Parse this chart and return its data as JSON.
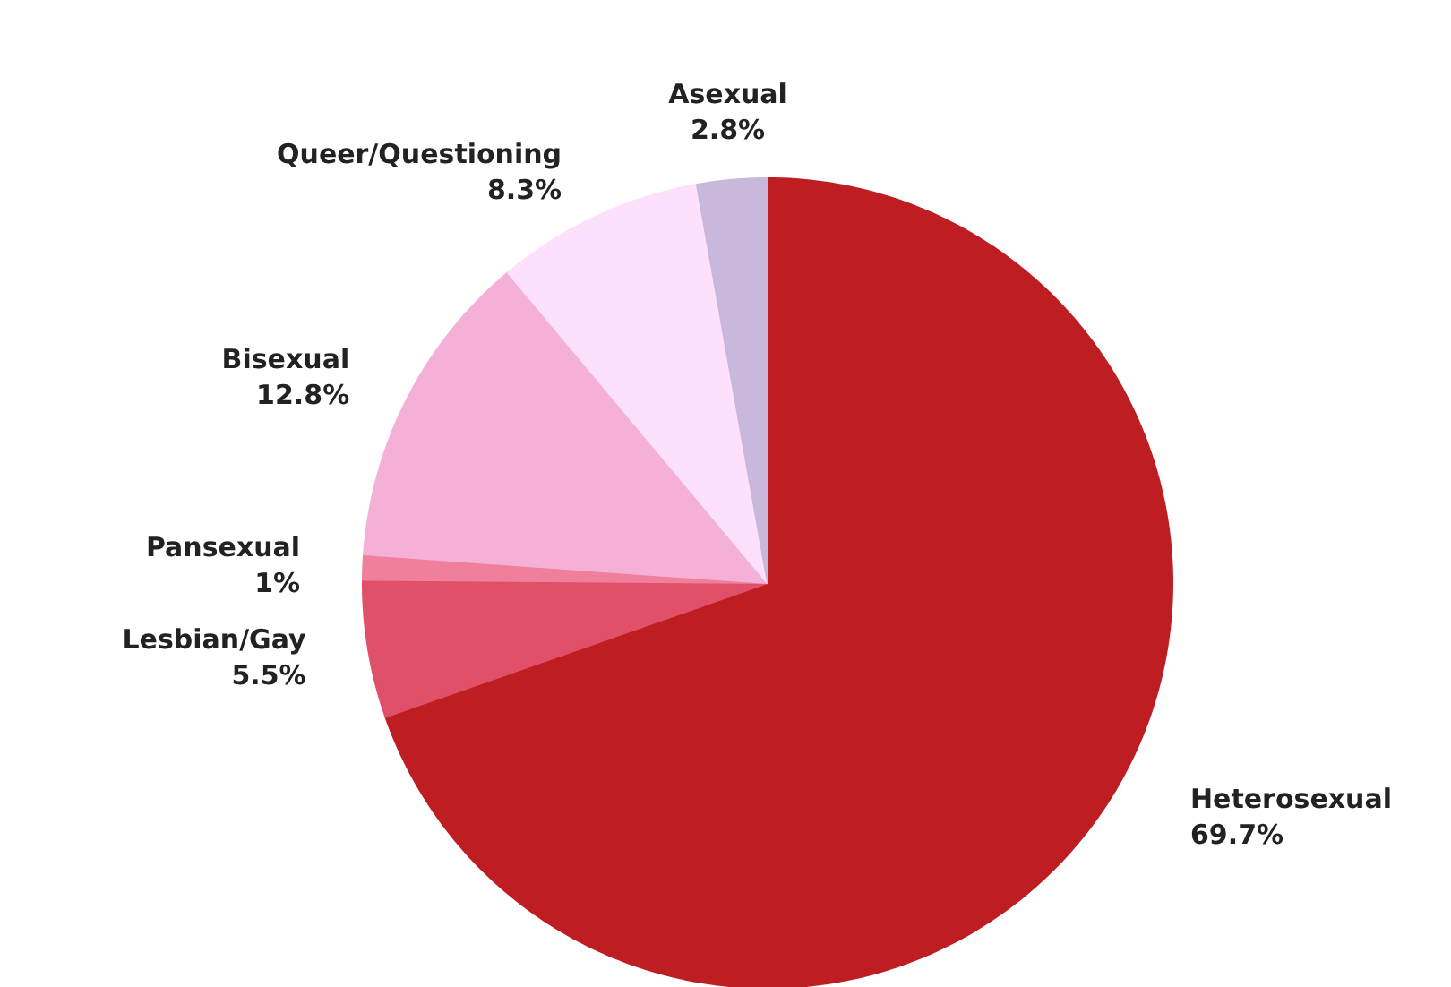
{
  "chart_data": {
    "type": "pie",
    "categories": [
      "Heterosexual",
      "Lesbian/Gay",
      "Pansexual",
      "Bisexual",
      "Queer/Questioning",
      "Asexual"
    ],
    "values": [
      69.7,
      5.5,
      1,
      12.8,
      8.3,
      2.8
    ],
    "value_labels": [
      "69.7%",
      "5.5%",
      "1%",
      "12.8%",
      "8.3%",
      "2.8%"
    ],
    "colors": [
      "#be1e22",
      "#e05068",
      "#ef7f9a",
      "#f5b0d8",
      "#fde0fb",
      "#c8b8dc"
    ]
  }
}
